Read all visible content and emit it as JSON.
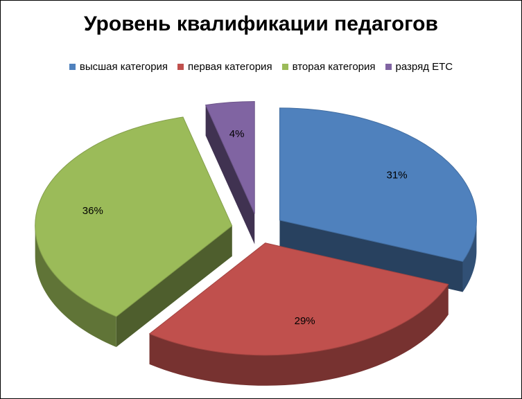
{
  "chart_data": {
    "type": "pie",
    "title": "Уровень квалификации педагогов",
    "categories": [
      "высшая категория",
      "первая категория",
      "вторая категория",
      "разряд ЕТС"
    ],
    "values": [
      31,
      29,
      36,
      4
    ],
    "labels": [
      "31%",
      "29%",
      "36%",
      "4%"
    ],
    "legend_position": "top",
    "style": "3d-exploded",
    "colors": [
      "#4F81BD",
      "#C0504D",
      "#9BBB59",
      "#8064A2"
    ]
  }
}
